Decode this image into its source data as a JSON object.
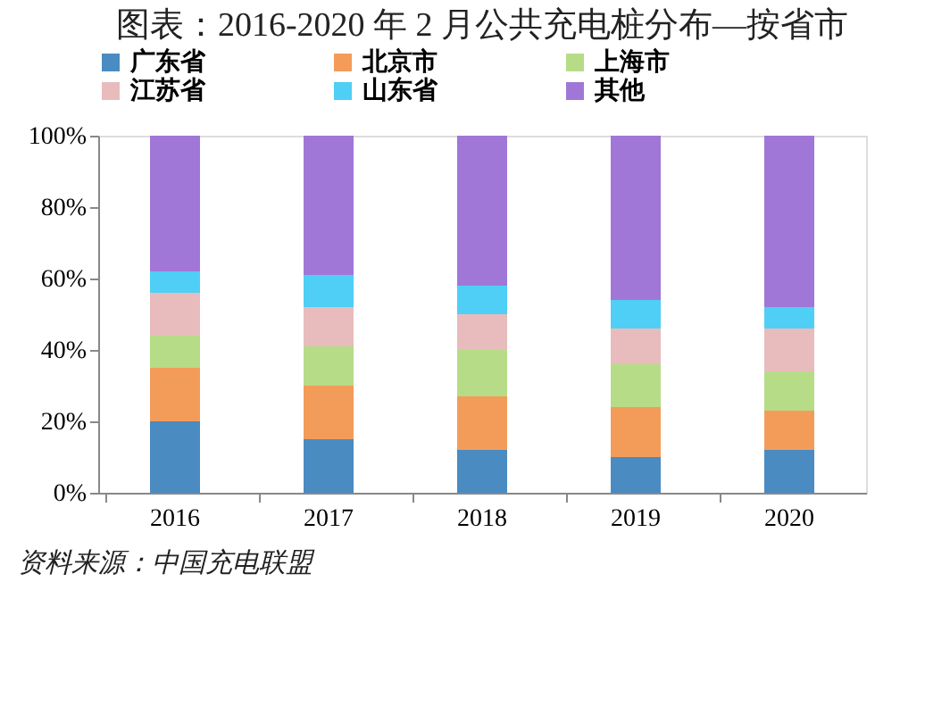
{
  "chart_data": {
    "type": "bar",
    "title": "图表：2016-2020 年 2 月公共充电桩分布—按省市",
    "stacked": true,
    "categories": [
      "2016",
      "2017",
      "2018",
      "2019",
      "2020"
    ],
    "series": [
      {
        "name": "广东省",
        "color": "#4a8bc2",
        "values": [
          20,
          15,
          12,
          10,
          12
        ]
      },
      {
        "name": "北京市",
        "color": "#f39c5a",
        "values": [
          15,
          15,
          15,
          14,
          11
        ]
      },
      {
        "name": "上海市",
        "color": "#b7dc88",
        "values": [
          9,
          11,
          13,
          12,
          11
        ]
      },
      {
        "name": "江苏省",
        "color": "#e8bcbc",
        "values": [
          12,
          11,
          10,
          10,
          12
        ]
      },
      {
        "name": "山东省",
        "color": "#4fcff5",
        "values": [
          6,
          9,
          8,
          8,
          6
        ]
      },
      {
        "name": "其他",
        "color": "#a077d6",
        "values": [
          38,
          39,
          42,
          46,
          48
        ]
      }
    ],
    "ylim": [
      0,
      100
    ],
    "yticks": [
      {
        "value": 0,
        "label": "0%"
      },
      {
        "value": 20,
        "label": "20%"
      },
      {
        "value": 40,
        "label": "40%"
      },
      {
        "value": 60,
        "label": "60%"
      },
      {
        "value": 80,
        "label": "80%"
      },
      {
        "value": 100,
        "label": "100%"
      }
    ],
    "grid": false,
    "legend": "top",
    "annotations": [
      "资料来源：中国充电联盟"
    ]
  }
}
